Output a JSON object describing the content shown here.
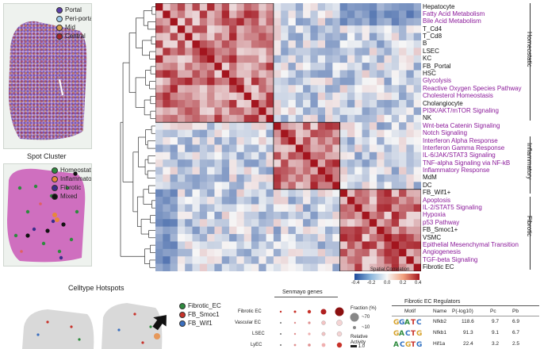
{
  "zonation_legend": [
    {
      "label": "Portal",
      "color": "#5b3fa8"
    },
    {
      "label": "Peri-portal",
      "color": "#9ecbe8"
    },
    {
      "label": "Mid",
      "color": "#d4a04a"
    },
    {
      "label": "Central",
      "color": "#a3262a"
    }
  ],
  "spot_cluster": {
    "title": "Spot Cluster",
    "legend": [
      {
        "label": "Homeostatic",
        "color": "#2e8a3e"
      },
      {
        "label": "Inflammatory",
        "color": "#e8873a"
      },
      {
        "label": "Fibrotic",
        "color": "#3a2d8c"
      },
      {
        "label": "Mixed",
        "color": "#111111"
      }
    ]
  },
  "heatmap": {
    "colorbar_title": "Spatial Correlation",
    "colorbar_ticks": [
      "-0.4",
      "-0.2",
      "0.0",
      "0.2",
      "0.4"
    ],
    "groups": [
      {
        "label": "Homeostatic"
      },
      {
        "label": "Inflammatory"
      },
      {
        "label": "Fibrotic"
      }
    ],
    "rows": [
      {
        "label": "Hepatocyte",
        "kind": "celltype"
      },
      {
        "label": "Fatty Acid Metabolism",
        "kind": "pathway"
      },
      {
        "label": "Bile Acid Metabolism",
        "kind": "pathway"
      },
      {
        "label": "T_Cd4",
        "kind": "celltype"
      },
      {
        "label": "T_Cd8",
        "kind": "celltype"
      },
      {
        "label": "B",
        "kind": "celltype"
      },
      {
        "label": "LSEC",
        "kind": "celltype"
      },
      {
        "label": "KC",
        "kind": "celltype"
      },
      {
        "label": "FB_Portal",
        "kind": "celltype"
      },
      {
        "label": "HSC",
        "kind": "celltype"
      },
      {
        "label": "Glycolysis",
        "kind": "pathway"
      },
      {
        "label": "Reactive Oxygen Species Pathway",
        "kind": "pathway"
      },
      {
        "label": "Cholesterol Homeostasis",
        "kind": "pathway"
      },
      {
        "label": "Cholangiocyte",
        "kind": "celltype"
      },
      {
        "label": "PI3K/AKT/mTOR Signaling",
        "kind": "pathway"
      },
      {
        "label": "NK",
        "kind": "celltype"
      },
      {
        "label": "Wnt-beta Catenin Signaling",
        "kind": "pathway"
      },
      {
        "label": "Notch Signaling",
        "kind": "pathway"
      },
      {
        "label": "Interferon Alpha Response",
        "kind": "pathway"
      },
      {
        "label": "Interferon Gamma Response",
        "kind": "pathway"
      },
      {
        "label": "IL-6/JAK/STAT3 Signaling",
        "kind": "pathway"
      },
      {
        "label": "TNF-alpha Signaling via NF-kB",
        "kind": "pathway"
      },
      {
        "label": "Inflammatory Response",
        "kind": "pathway"
      },
      {
        "label": "MdM",
        "kind": "celltype"
      },
      {
        "label": "DC",
        "kind": "celltype"
      },
      {
        "label": "FB_Wif1+",
        "kind": "celltype"
      },
      {
        "label": "Apoptosis",
        "kind": "pathway"
      },
      {
        "label": "IL-2/STAT5 Signaling",
        "kind": "pathway"
      },
      {
        "label": "Hypoxia",
        "kind": "pathway"
      },
      {
        "label": "p53 Pathway",
        "kind": "pathway"
      },
      {
        "label": "FB_Smoc1+",
        "kind": "celltype"
      },
      {
        "label": "VSMC",
        "kind": "celltype"
      },
      {
        "label": "Epithelial Mesenchymal Transition",
        "kind": "pathway"
      },
      {
        "label": "Angiogenesis",
        "kind": "pathway"
      },
      {
        "label": "TGF-beta Signaling",
        "kind": "pathway"
      },
      {
        "label": "Fibrotic EC",
        "kind": "celltype"
      }
    ]
  },
  "celltype_hotspots": {
    "title": "Celltype Hotspots",
    "legend": [
      {
        "label": "Fibrotic_EC",
        "color": "#2e8a3e"
      },
      {
        "label": "FB_Smoc1",
        "color": "#c8322a"
      },
      {
        "label": "FB_Wif1",
        "color": "#3a6fc0"
      }
    ]
  },
  "senmayo": {
    "title": "Senmayo genes",
    "rows": [
      "Fibrotic EC",
      "Vascular EC",
      "LSEC",
      "LyEC"
    ],
    "fraction_label": "Fraction (%)",
    "fraction_values": [
      "70",
      "10"
    ],
    "activity_label": "Relative Activity",
    "activity_value": "1.0"
  },
  "regulators": {
    "title": "Fibrotic EC Regulators",
    "columns": [
      "Motif",
      "Name",
      "P(-log10)",
      "Pc",
      "Pb"
    ],
    "rows": [
      {
        "name": "Nfkb2",
        "p": "118.6",
        "pc": "9.7",
        "pb": "6.9"
      },
      {
        "name": "Nfkb1",
        "p": "91.3",
        "pc": "9.1",
        "pb": "6.7"
      },
      {
        "name": "Hif1a",
        "p": "22.4",
        "pc": "3.2",
        "pb": "2.5"
      }
    ]
  }
}
